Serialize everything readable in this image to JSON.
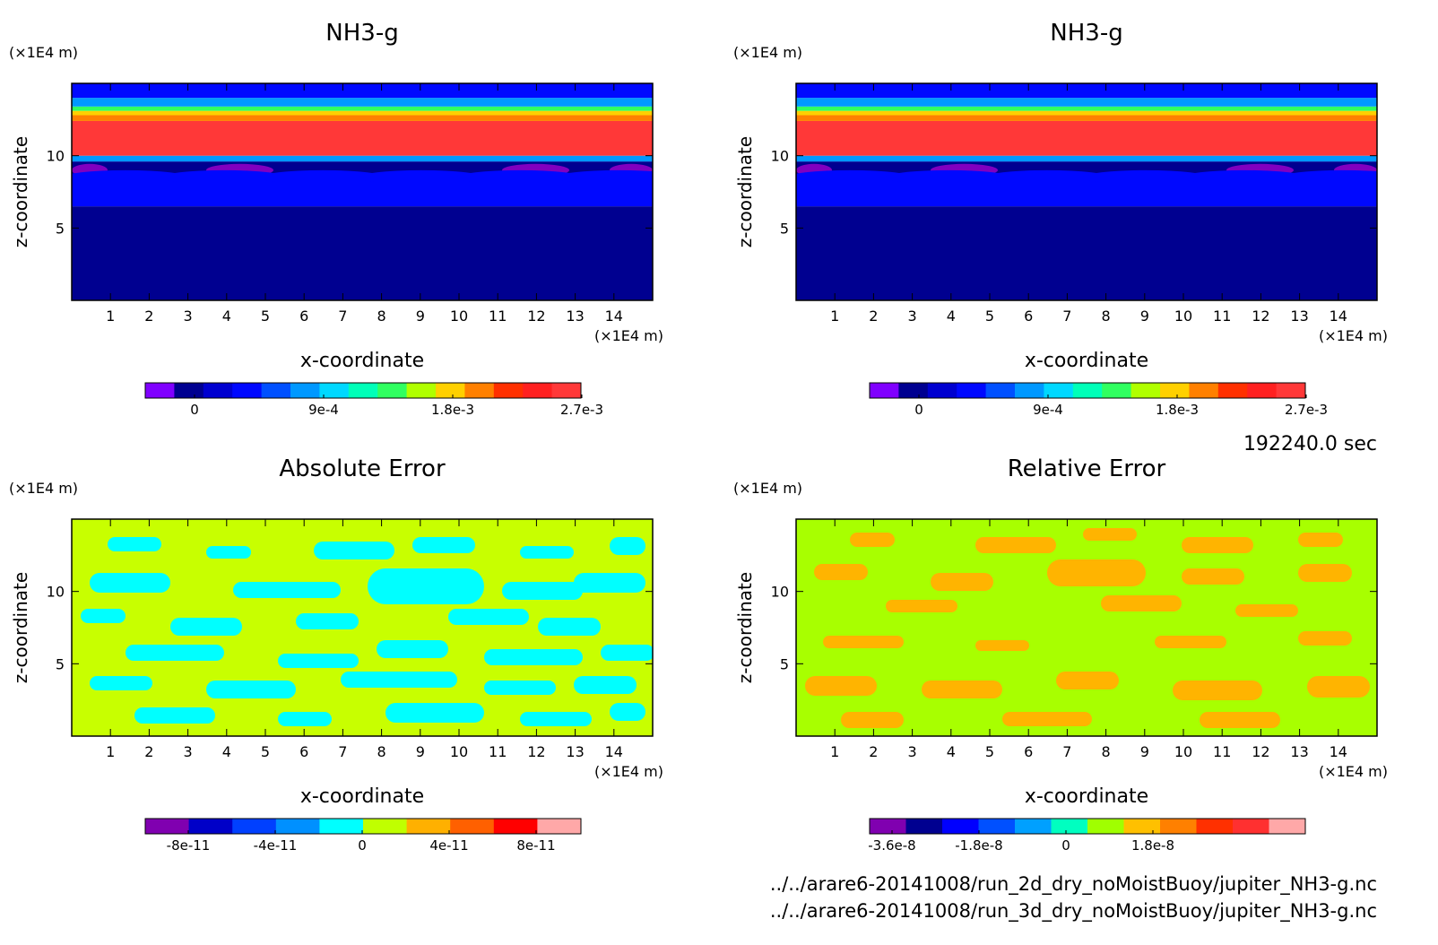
{
  "chart_data": [
    {
      "type": "heatmap",
      "title": "NH3-g",
      "xlabel": "x-coordinate",
      "ylabel": "z-coordinate",
      "x_unit": "(×1E4 m)",
      "y_unit": "(×1E4 m)",
      "xlim": [
        0,
        15
      ],
      "ylim": [
        0,
        15
      ],
      "xticks": [
        1,
        2,
        3,
        4,
        5,
        6,
        7,
        8,
        9,
        10,
        11,
        12,
        13,
        14
      ],
      "yticks": [
        5,
        10
      ],
      "colorbar": {
        "colors": [
          "#8000ff",
          "#000090",
          "#0000d0",
          "#0008ff",
          "#0050ff",
          "#0098ff",
          "#00d8ff",
          "#00ffb8",
          "#30ff60",
          "#b0ff00",
          "#ffd000",
          "#ff8000",
          "#ff3000",
          "#ff2020",
          "#ff3838"
        ],
        "tick_labels": [
          "0",
          "9e-4",
          "1.8e-3",
          "2.7e-3"
        ]
      },
      "bands": [
        {
          "z0": 0,
          "z1": 6.5,
          "color": "#000090"
        },
        {
          "z0": 6.5,
          "z1": 8.5,
          "color": "#0008ff"
        },
        {
          "z0": 8.5,
          "z1": 9.6,
          "color": "#000090"
        },
        {
          "z0": 9.6,
          "z1": 10.0,
          "color": "#0098ff"
        },
        {
          "z0": 10.0,
          "z1": 12.4,
          "color": "#ff3838"
        },
        {
          "z0": 12.4,
          "z1": 12.8,
          "color": "#ff8000"
        },
        {
          "z0": 12.8,
          "z1": 13.1,
          "color": "#ffd000"
        },
        {
          "z0": 13.1,
          "z1": 13.4,
          "color": "#30ff60"
        },
        {
          "z0": 13.4,
          "z1": 14.0,
          "color": "#0098ff"
        },
        {
          "z0": 14.0,
          "z1": 15,
          "color": "#0008ff"
        }
      ]
    },
    {
      "type": "heatmap",
      "title": "NH3-g",
      "xlabel": "x-coordinate",
      "ylabel": "z-coordinate",
      "x_unit": "(×1E4 m)",
      "y_unit": "(×1E4 m)",
      "xlim": [
        0,
        15
      ],
      "ylim": [
        0,
        15
      ],
      "xticks": [
        1,
        2,
        3,
        4,
        5,
        6,
        7,
        8,
        9,
        10,
        11,
        12,
        13,
        14
      ],
      "yticks": [
        5,
        10
      ],
      "colorbar": {
        "colors": [
          "#8000ff",
          "#000090",
          "#0000d0",
          "#0008ff",
          "#0050ff",
          "#0098ff",
          "#00d8ff",
          "#00ffb8",
          "#30ff60",
          "#b0ff00",
          "#ffd000",
          "#ff8000",
          "#ff3000",
          "#ff2020",
          "#ff3838"
        ],
        "tick_labels": [
          "0",
          "9e-4",
          "1.8e-3",
          "2.7e-3"
        ]
      },
      "bands": [
        {
          "z0": 0,
          "z1": 6.5,
          "color": "#000090"
        },
        {
          "z0": 6.5,
          "z1": 8.5,
          "color": "#0008ff"
        },
        {
          "z0": 8.5,
          "z1": 9.6,
          "color": "#000090"
        },
        {
          "z0": 9.6,
          "z1": 10.0,
          "color": "#0098ff"
        },
        {
          "z0": 10.0,
          "z1": 12.4,
          "color": "#ff3838"
        },
        {
          "z0": 12.4,
          "z1": 12.8,
          "color": "#ff8000"
        },
        {
          "z0": 12.8,
          "z1": 13.1,
          "color": "#ffd000"
        },
        {
          "z0": 13.1,
          "z1": 13.4,
          "color": "#30ff60"
        },
        {
          "z0": 13.4,
          "z1": 14.0,
          "color": "#0098ff"
        },
        {
          "z0": 14.0,
          "z1": 15,
          "color": "#0008ff"
        }
      ]
    },
    {
      "type": "heatmap",
      "title": "Absolute Error",
      "xlabel": "x-coordinate",
      "ylabel": "z-coordinate",
      "x_unit": "(×1E4 m)",
      "y_unit": "(×1E4 m)",
      "xlim": [
        0,
        15
      ],
      "ylim": [
        0,
        15
      ],
      "xticks": [
        1,
        2,
        3,
        4,
        5,
        6,
        7,
        8,
        9,
        10,
        11,
        12,
        13,
        14
      ],
      "yticks": [
        5,
        10
      ],
      "colorbar": {
        "colors": [
          "#8000b0",
          "#0000c8",
          "#0040ff",
          "#0090ff",
          "#00ffff",
          "#c0ff00",
          "#ffb000",
          "#ff6000",
          "#ff0000",
          "#ffa8a8"
        ],
        "tick_labels": [
          "-8e-11",
          "-4e-11",
          "0",
          "4e-11",
          "8e-11"
        ]
      },
      "background": "#c8ff00",
      "patch_color": "#00ffff",
      "bands": []
    },
    {
      "type": "heatmap",
      "title": "Relative Error",
      "xlabel": "x-coordinate",
      "ylabel": "z-coordinate",
      "x_unit": "(×1E4 m)",
      "y_unit": "(×1E4 m)",
      "xlim": [
        0,
        15
      ],
      "ylim": [
        0,
        15
      ],
      "xticks": [
        1,
        2,
        3,
        4,
        5,
        6,
        7,
        8,
        9,
        10,
        11,
        12,
        13,
        14
      ],
      "yticks": [
        5,
        10
      ],
      "colorbar": {
        "colors": [
          "#8000b0",
          "#000090",
          "#0000ff",
          "#0050ff",
          "#00a0ff",
          "#00ffc0",
          "#a0ff00",
          "#ffc000",
          "#ff8000",
          "#ff3000",
          "#ff3030",
          "#ffa8a8"
        ],
        "tick_labels": [
          "-3.6e-8",
          "-1.8e-8",
          "0",
          "1.8e-8"
        ]
      },
      "background": "#a8ff00",
      "patch_color": "#ffb400",
      "bands": []
    }
  ],
  "time_label": "192240.0 sec",
  "file_paths": [
    "../../arare6-20141008/run_2d_dry_noMoistBuoy/jupiter_NH3-g.nc",
    "../../arare6-20141008/run_3d_dry_noMoistBuoy/jupiter_NH3-g.nc"
  ]
}
